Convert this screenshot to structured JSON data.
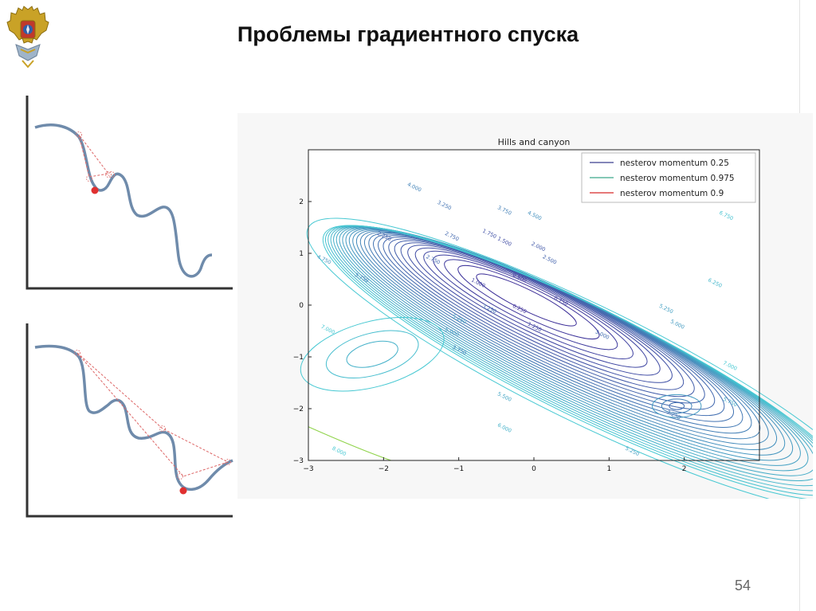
{
  "slide": {
    "title": "Проблемы градиентного спуска",
    "page_number": "54"
  },
  "logo": {
    "icon": "double-headed-eagle-emblem-icon"
  },
  "illustrations": [
    {
      "id": "top",
      "icon": "ball-stuck-in-local-minimum-icon"
    },
    {
      "id": "bottom",
      "icon": "ball-with-momentum-reaching-deeper-minimum-icon"
    }
  ],
  "chart_data": {
    "type": "contour",
    "title": "Hills and canyon",
    "xlim": [
      -3,
      3
    ],
    "ylim": [
      -3,
      3
    ],
    "x_ticks": [
      -3,
      -2,
      -1,
      0,
      1,
      2
    ],
    "y_ticks": [
      -3,
      -2,
      -1,
      0,
      1,
      2
    ],
    "x_tick_labels": [
      "−3",
      "−2",
      "−1",
      "0",
      "1",
      "2"
    ],
    "y_tick_labels": [
      "−3",
      "−2",
      "−1",
      "0",
      "1",
      "2"
    ],
    "grid": false,
    "legend_position": "top-right",
    "series": [
      {
        "name": "nesterov momentum 0.25",
        "color": "#3a3f8f"
      },
      {
        "name": "nesterov momentum 0.975",
        "color": "#3aa88a"
      },
      {
        "name": "nesterov momentum 0.9",
        "color": "#d62728"
      }
    ],
    "contour_levels": [
      0.25,
      0.5,
      0.75,
      1.0,
      1.25,
      1.5,
      1.75,
      2.0,
      2.25,
      2.5,
      2.75,
      3.0,
      3.25,
      3.5,
      3.75,
      4.0,
      4.25,
      4.5,
      4.75,
      5.0,
      5.25,
      5.5,
      5.75,
      6.0,
      6.25,
      6.5,
      6.75,
      7.0,
      8.0
    ],
    "contour_labels": [
      {
        "text": "4.000",
        "x": -1.6,
        "y": 2.25
      },
      {
        "text": "3.250",
        "x": -1.2,
        "y": 1.9
      },
      {
        "text": "3.750",
        "x": -0.4,
        "y": 1.8
      },
      {
        "text": "4.500",
        "x": 0.0,
        "y": 1.7
      },
      {
        "text": "2.750",
        "x": -1.1,
        "y": 1.3
      },
      {
        "text": "1.750",
        "x": -0.6,
        "y": 1.35
      },
      {
        "text": "1.500",
        "x": -0.4,
        "y": 1.2
      },
      {
        "text": "2.000",
        "x": 0.05,
        "y": 1.1
      },
      {
        "text": "2.500",
        "x": 0.2,
        "y": 0.85
      },
      {
        "text": "0.500",
        "x": -0.2,
        "y": 0.5
      },
      {
        "text": "0.750",
        "x": 0.35,
        "y": 0.05
      },
      {
        "text": "1.000",
        "x": -0.75,
        "y": 0.4
      },
      {
        "text": "0.250",
        "x": -0.2,
        "y": -0.1
      },
      {
        "text": "1.250",
        "x": 0.0,
        "y": -0.45
      },
      {
        "text": "2.250",
        "x": -2.0,
        "y": 1.3
      },
      {
        "text": "2.750",
        "x": -1.35,
        "y": 0.85
      },
      {
        "text": "4.750",
        "x": -2.8,
        "y": 0.85
      },
      {
        "text": "3.750",
        "x": -2.3,
        "y": 0.5
      },
      {
        "text": "5.250",
        "x": -1.0,
        "y": -0.3
      },
      {
        "text": "3.250",
        "x": -0.6,
        "y": -0.1
      },
      {
        "text": "5.000",
        "x": -1.1,
        "y": -0.55
      },
      {
        "text": "3.750",
        "x": -1.0,
        "y": -0.9
      },
      {
        "text": "7.000",
        "x": -2.75,
        "y": -0.5
      },
      {
        "text": "5.500",
        "x": -0.4,
        "y": -1.8
      },
      {
        "text": "6.000",
        "x": -0.4,
        "y": -2.4
      },
      {
        "text": "8.000",
        "x": -2.6,
        "y": -2.85
      },
      {
        "text": "3.000",
        "x": 0.9,
        "y": -0.6
      },
      {
        "text": "6.750",
        "x": 2.55,
        "y": 1.7
      },
      {
        "text": "5.250",
        "x": 1.75,
        "y": -0.1
      },
      {
        "text": "5.000",
        "x": 1.9,
        "y": -0.4
      },
      {
        "text": "6.250",
        "x": 2.4,
        "y": 0.4
      },
      {
        "text": "7.000",
        "x": 2.6,
        "y": -1.2
      },
      {
        "text": "5.750",
        "x": 2.6,
        "y": -1.9
      },
      {
        "text": "3.250",
        "x": 1.85,
        "y": -2.15
      },
      {
        "text": "5.250",
        "x": 1.3,
        "y": -2.85
      }
    ]
  }
}
